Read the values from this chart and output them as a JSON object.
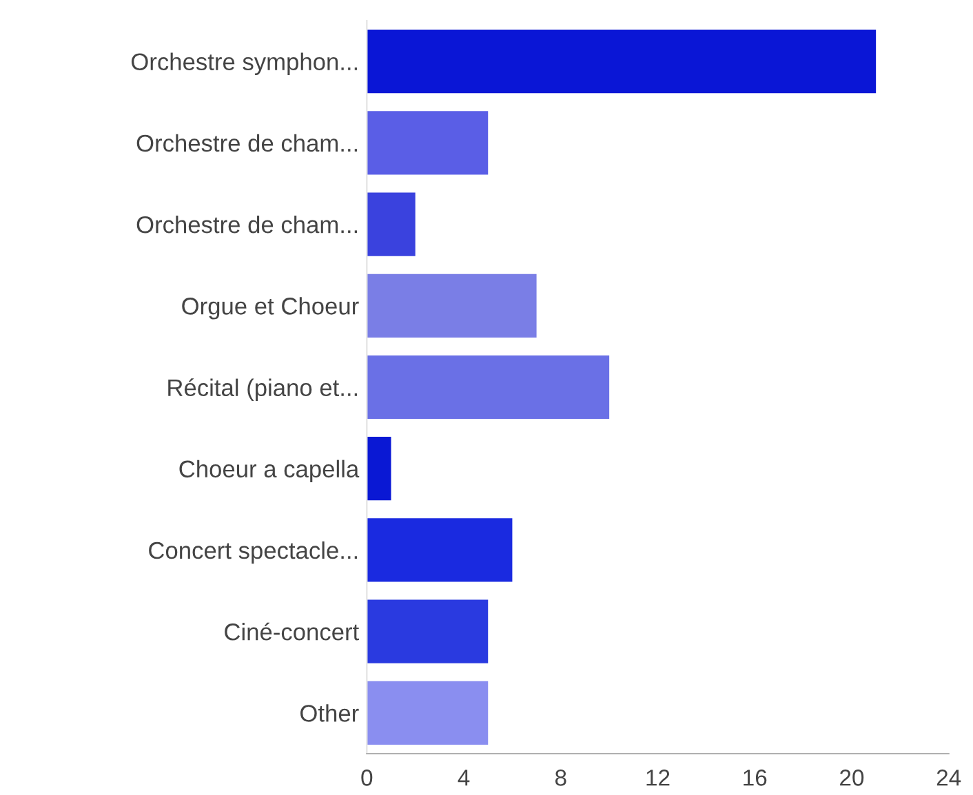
{
  "chart_data": {
    "type": "bar",
    "orientation": "horizontal",
    "categories": [
      "Orchestre symphon...",
      "Orchestre de cham...",
      "Orchestre de cham...",
      "Orgue et Choeur",
      "Récital (piano et...",
      "Choeur a capella",
      "Concert spectacle...",
      "Ciné-concert",
      "Other"
    ],
    "values": [
      21,
      5,
      2,
      7,
      10,
      1,
      6,
      5,
      5
    ],
    "colors": [
      "#0a16d6",
      "#5a5ee6",
      "#3a42de",
      "#7a7ee6",
      "#6a70e6",
      "#0a18d4",
      "#1a2ae0",
      "#2a3ae0",
      "#8a8ef0"
    ],
    "xlim": [
      0,
      24
    ],
    "xticks": [
      0,
      4,
      8,
      12,
      16,
      20,
      24
    ],
    "grid": false
  }
}
